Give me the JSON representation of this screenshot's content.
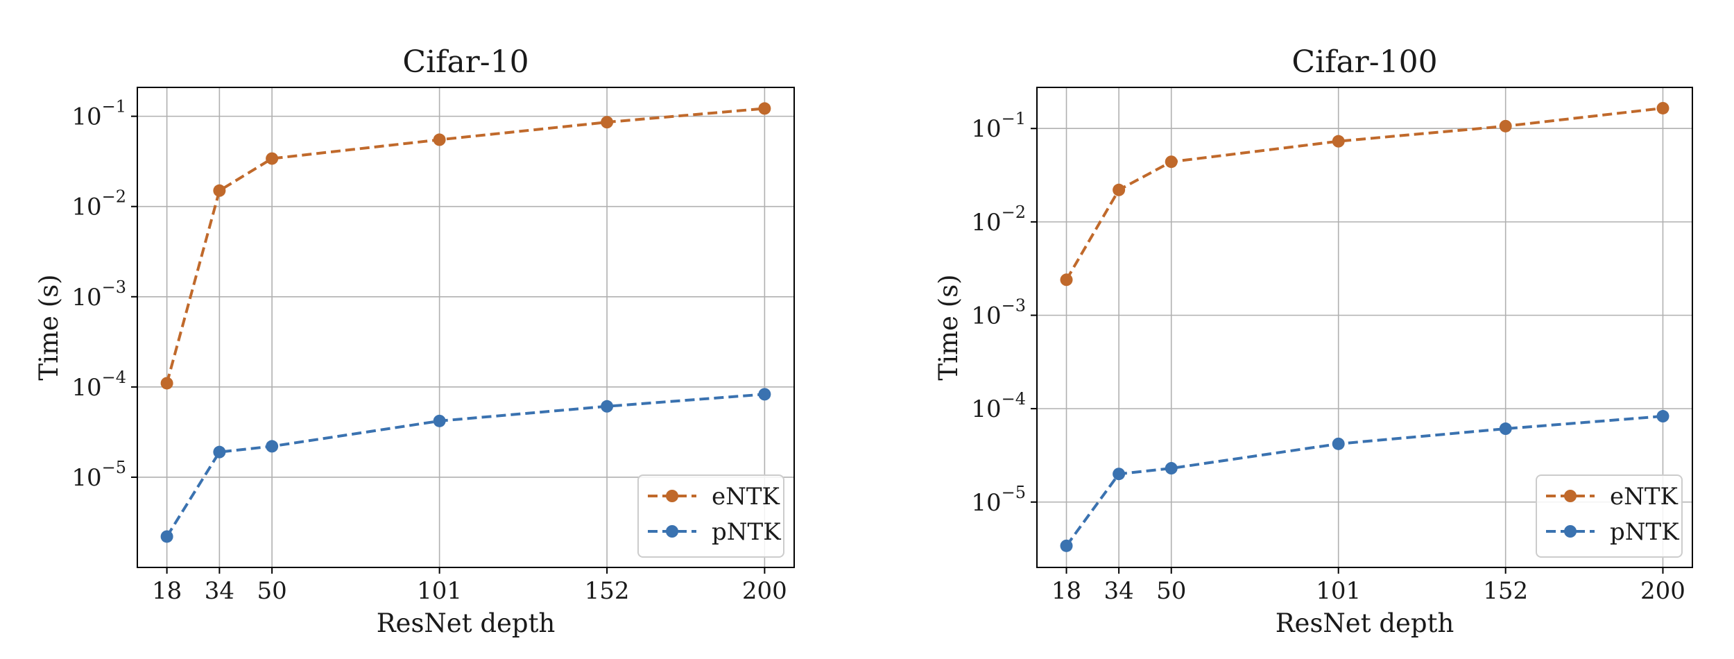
{
  "chart_data": [
    {
      "type": "line",
      "title": "Cifar-10",
      "xlabel": "ResNet depth",
      "ylabel": "Time (s)",
      "yscale": "log",
      "grid": true,
      "legend_position": "lower-right",
      "x": [
        18,
        34,
        50,
        101,
        152,
        200
      ],
      "x_tick_labels": [
        "18",
        "34",
        "50",
        "101",
        "152",
        "200"
      ],
      "xlim": [
        9,
        209
      ],
      "ylim_log10": [
        -6.0,
        -0.68
      ],
      "y_ticks": [
        {
          "base": "10",
          "exp": "−1",
          "log10": -1
        },
        {
          "base": "10",
          "exp": "−2",
          "log10": -2
        },
        {
          "base": "10",
          "exp": "−3",
          "log10": -3
        },
        {
          "base": "10",
          "exp": "−4",
          "log10": -4
        },
        {
          "base": "10",
          "exp": "−5",
          "log10": -5
        }
      ],
      "series": [
        {
          "name": "eNTK",
          "color": "#c0692b",
          "values": [
            0.00011,
            0.015,
            0.034,
            0.055,
            0.086,
            0.122
          ]
        },
        {
          "name": "pNTK",
          "color": "#3a72b0",
          "values": [
            2.2e-06,
            1.9e-05,
            2.2e-05,
            4.2e-05,
            6.1e-05,
            8.3e-05
          ]
        }
      ]
    },
    {
      "type": "line",
      "title": "Cifar-100",
      "xlabel": "ResNet depth",
      "ylabel": "Time (s)",
      "yscale": "log",
      "grid": true,
      "legend_position": "lower-right",
      "x": [
        18,
        34,
        50,
        101,
        152,
        200
      ],
      "x_tick_labels": [
        "18",
        "34",
        "50",
        "101",
        "152",
        "200"
      ],
      "xlim": [
        9,
        209
      ],
      "ylim_log10": [
        -5.7,
        -0.56
      ],
      "y_ticks": [
        {
          "base": "10",
          "exp": "−1",
          "log10": -1
        },
        {
          "base": "10",
          "exp": "−2",
          "log10": -2
        },
        {
          "base": "10",
          "exp": "−3",
          "log10": -3
        },
        {
          "base": "10",
          "exp": "−4",
          "log10": -4
        },
        {
          "base": "10",
          "exp": "−5",
          "log10": -5
        }
      ],
      "series": [
        {
          "name": "eNTK",
          "color": "#c0692b",
          "values": [
            0.0024,
            0.022,
            0.044,
            0.073,
            0.106,
            0.165
          ]
        },
        {
          "name": "pNTK",
          "color": "#3a72b0",
          "values": [
            3.4e-06,
            2e-05,
            2.3e-05,
            4.2e-05,
            6.1e-05,
            8.3e-05
          ]
        }
      ]
    }
  ]
}
